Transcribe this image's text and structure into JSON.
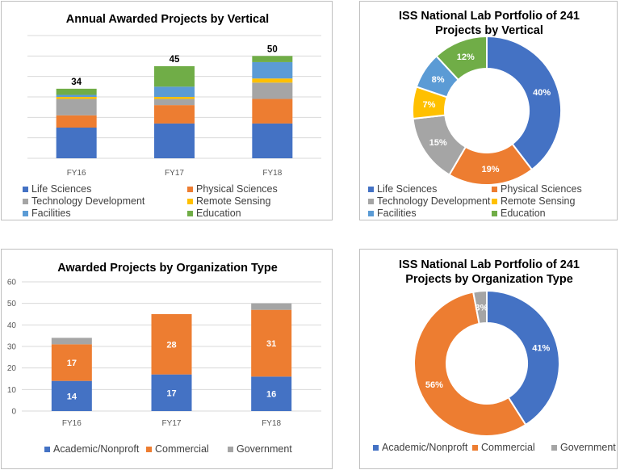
{
  "colors": {
    "life_sciences": "#4472C4",
    "physical_sciences": "#ED7D31",
    "technology_development": "#A5A5A5",
    "remote_sensing": "#FFC000",
    "facilities": "#5B9BD5",
    "education": "#70AD47",
    "academic": "#4472C4",
    "commercial": "#ED7D31",
    "government": "#A5A5A5"
  },
  "chart_data": [
    {
      "id": "annual-by-vertical",
      "type": "bar",
      "stacked": true,
      "title": "Annual Awarded Projects by Vertical",
      "categories": [
        "FY16",
        "FY17",
        "FY18"
      ],
      "totals": [
        "34",
        "45",
        "50"
      ],
      "ylim": [
        0,
        60
      ],
      "grid": true,
      "show_y_ticks": false,
      "legend_position": "bottom",
      "series": [
        {
          "name": "Life Sciences",
          "color_key": "life_sciences",
          "values": [
            15,
            17,
            17
          ]
        },
        {
          "name": "Physical Sciences",
          "color_key": "physical_sciences",
          "values": [
            6,
            9,
            12
          ]
        },
        {
          "name": "Technology Development",
          "color_key": "technology_development",
          "values": [
            8,
            3,
            8
          ]
        },
        {
          "name": "Remote Sensing",
          "color_key": "remote_sensing",
          "values": [
            1,
            1,
            2
          ]
        },
        {
          "name": "Facilities",
          "color_key": "facilities",
          "values": [
            1,
            5,
            8
          ]
        },
        {
          "name": "Education",
          "color_key": "education",
          "values": [
            3,
            10,
            3
          ]
        }
      ]
    },
    {
      "id": "portfolio-by-vertical",
      "type": "pie",
      "donut": true,
      "title_lines": [
        "ISS National Lab Portfolio of 241",
        "Projects by Vertical"
      ],
      "legend_position": "bottom",
      "slices": [
        {
          "name": "Life Sciences",
          "color_key": "life_sciences",
          "value": 40,
          "label": "40%"
        },
        {
          "name": "Physical Sciences",
          "color_key": "physical_sciences",
          "value": 19,
          "label": "19%"
        },
        {
          "name": "Technology Development",
          "color_key": "technology_development",
          "value": 15,
          "label": "15%"
        },
        {
          "name": "Remote Sensing",
          "color_key": "remote_sensing",
          "value": 7,
          "label": "7%"
        },
        {
          "name": "Facilities",
          "color_key": "facilities",
          "value": 8,
          "label": "8%"
        },
        {
          "name": "Education",
          "color_key": "education",
          "value": 12,
          "label": "12%"
        }
      ]
    },
    {
      "id": "by-organization-type",
      "type": "bar",
      "stacked": true,
      "title": "Awarded Projects by Organization Type",
      "categories": [
        "FY16",
        "FY17",
        "FY18"
      ],
      "ylim": [
        0,
        60
      ],
      "yticks": [
        0,
        10,
        20,
        30,
        40,
        50,
        60
      ],
      "grid": true,
      "show_y_ticks": true,
      "legend_position": "bottom",
      "series": [
        {
          "name": "Academic/Nonproft",
          "color_key": "academic",
          "values": [
            14,
            17,
            16
          ],
          "labels": [
            "14",
            "17",
            "16"
          ]
        },
        {
          "name": "Commercial",
          "color_key": "commercial",
          "values": [
            17,
            28,
            31
          ],
          "labels": [
            "17",
            "28",
            "31"
          ]
        },
        {
          "name": "Government",
          "color_key": "government",
          "values": [
            3,
            0,
            3
          ],
          "labels": [
            "",
            "",
            ""
          ]
        }
      ]
    },
    {
      "id": "portfolio-by-organization-type",
      "type": "pie",
      "donut": true,
      "title_lines": [
        "ISS National Lab Portfolio of 241",
        "Projects by Organization Type"
      ],
      "legend_position": "bottom",
      "slices": [
        {
          "name": "Academic/Nonproft",
          "color_key": "academic",
          "value": 41,
          "label": "41%"
        },
        {
          "name": "Commercial",
          "color_key": "commercial",
          "value": 56,
          "label": "56%"
        },
        {
          "name": "Government",
          "color_key": "government",
          "value": 3,
          "label": "3%"
        }
      ]
    }
  ]
}
